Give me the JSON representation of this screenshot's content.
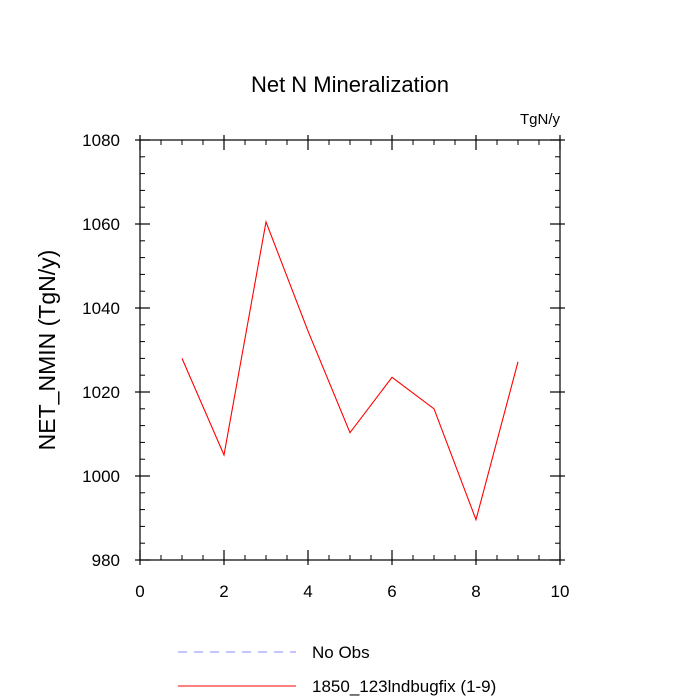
{
  "chart_data": {
    "type": "line",
    "title": "Net N Mineralization",
    "units_label": "TgN/y",
    "ylabel": "NET_NMIN  (TgN/y)",
    "xlabel": "",
    "xlim": [
      0,
      10
    ],
    "ylim": [
      980,
      1080
    ],
    "x_ticks": [
      0,
      2,
      4,
      6,
      8,
      10
    ],
    "y_ticks": [
      980,
      1000,
      1020,
      1040,
      1060,
      1080
    ],
    "grid": false,
    "legend_position": "bottom",
    "series": [
      {
        "name": "1850_123lndbugfix (1-9)",
        "color": "#ff0000",
        "style": "solid",
        "x": [
          1,
          2,
          3,
          4,
          5,
          6,
          7,
          8,
          9
        ],
        "values": [
          1028,
          1005,
          1060.5,
          1034.5,
          1010.3,
          1023.5,
          1016,
          989.6,
          1027.2
        ]
      }
    ],
    "legend": [
      {
        "label": "No Obs",
        "color": "#8888ff",
        "style": "dashed"
      },
      {
        "label": "1850_123lndbugfix (1-9)",
        "color": "#ff0000",
        "style": "solid"
      }
    ]
  }
}
